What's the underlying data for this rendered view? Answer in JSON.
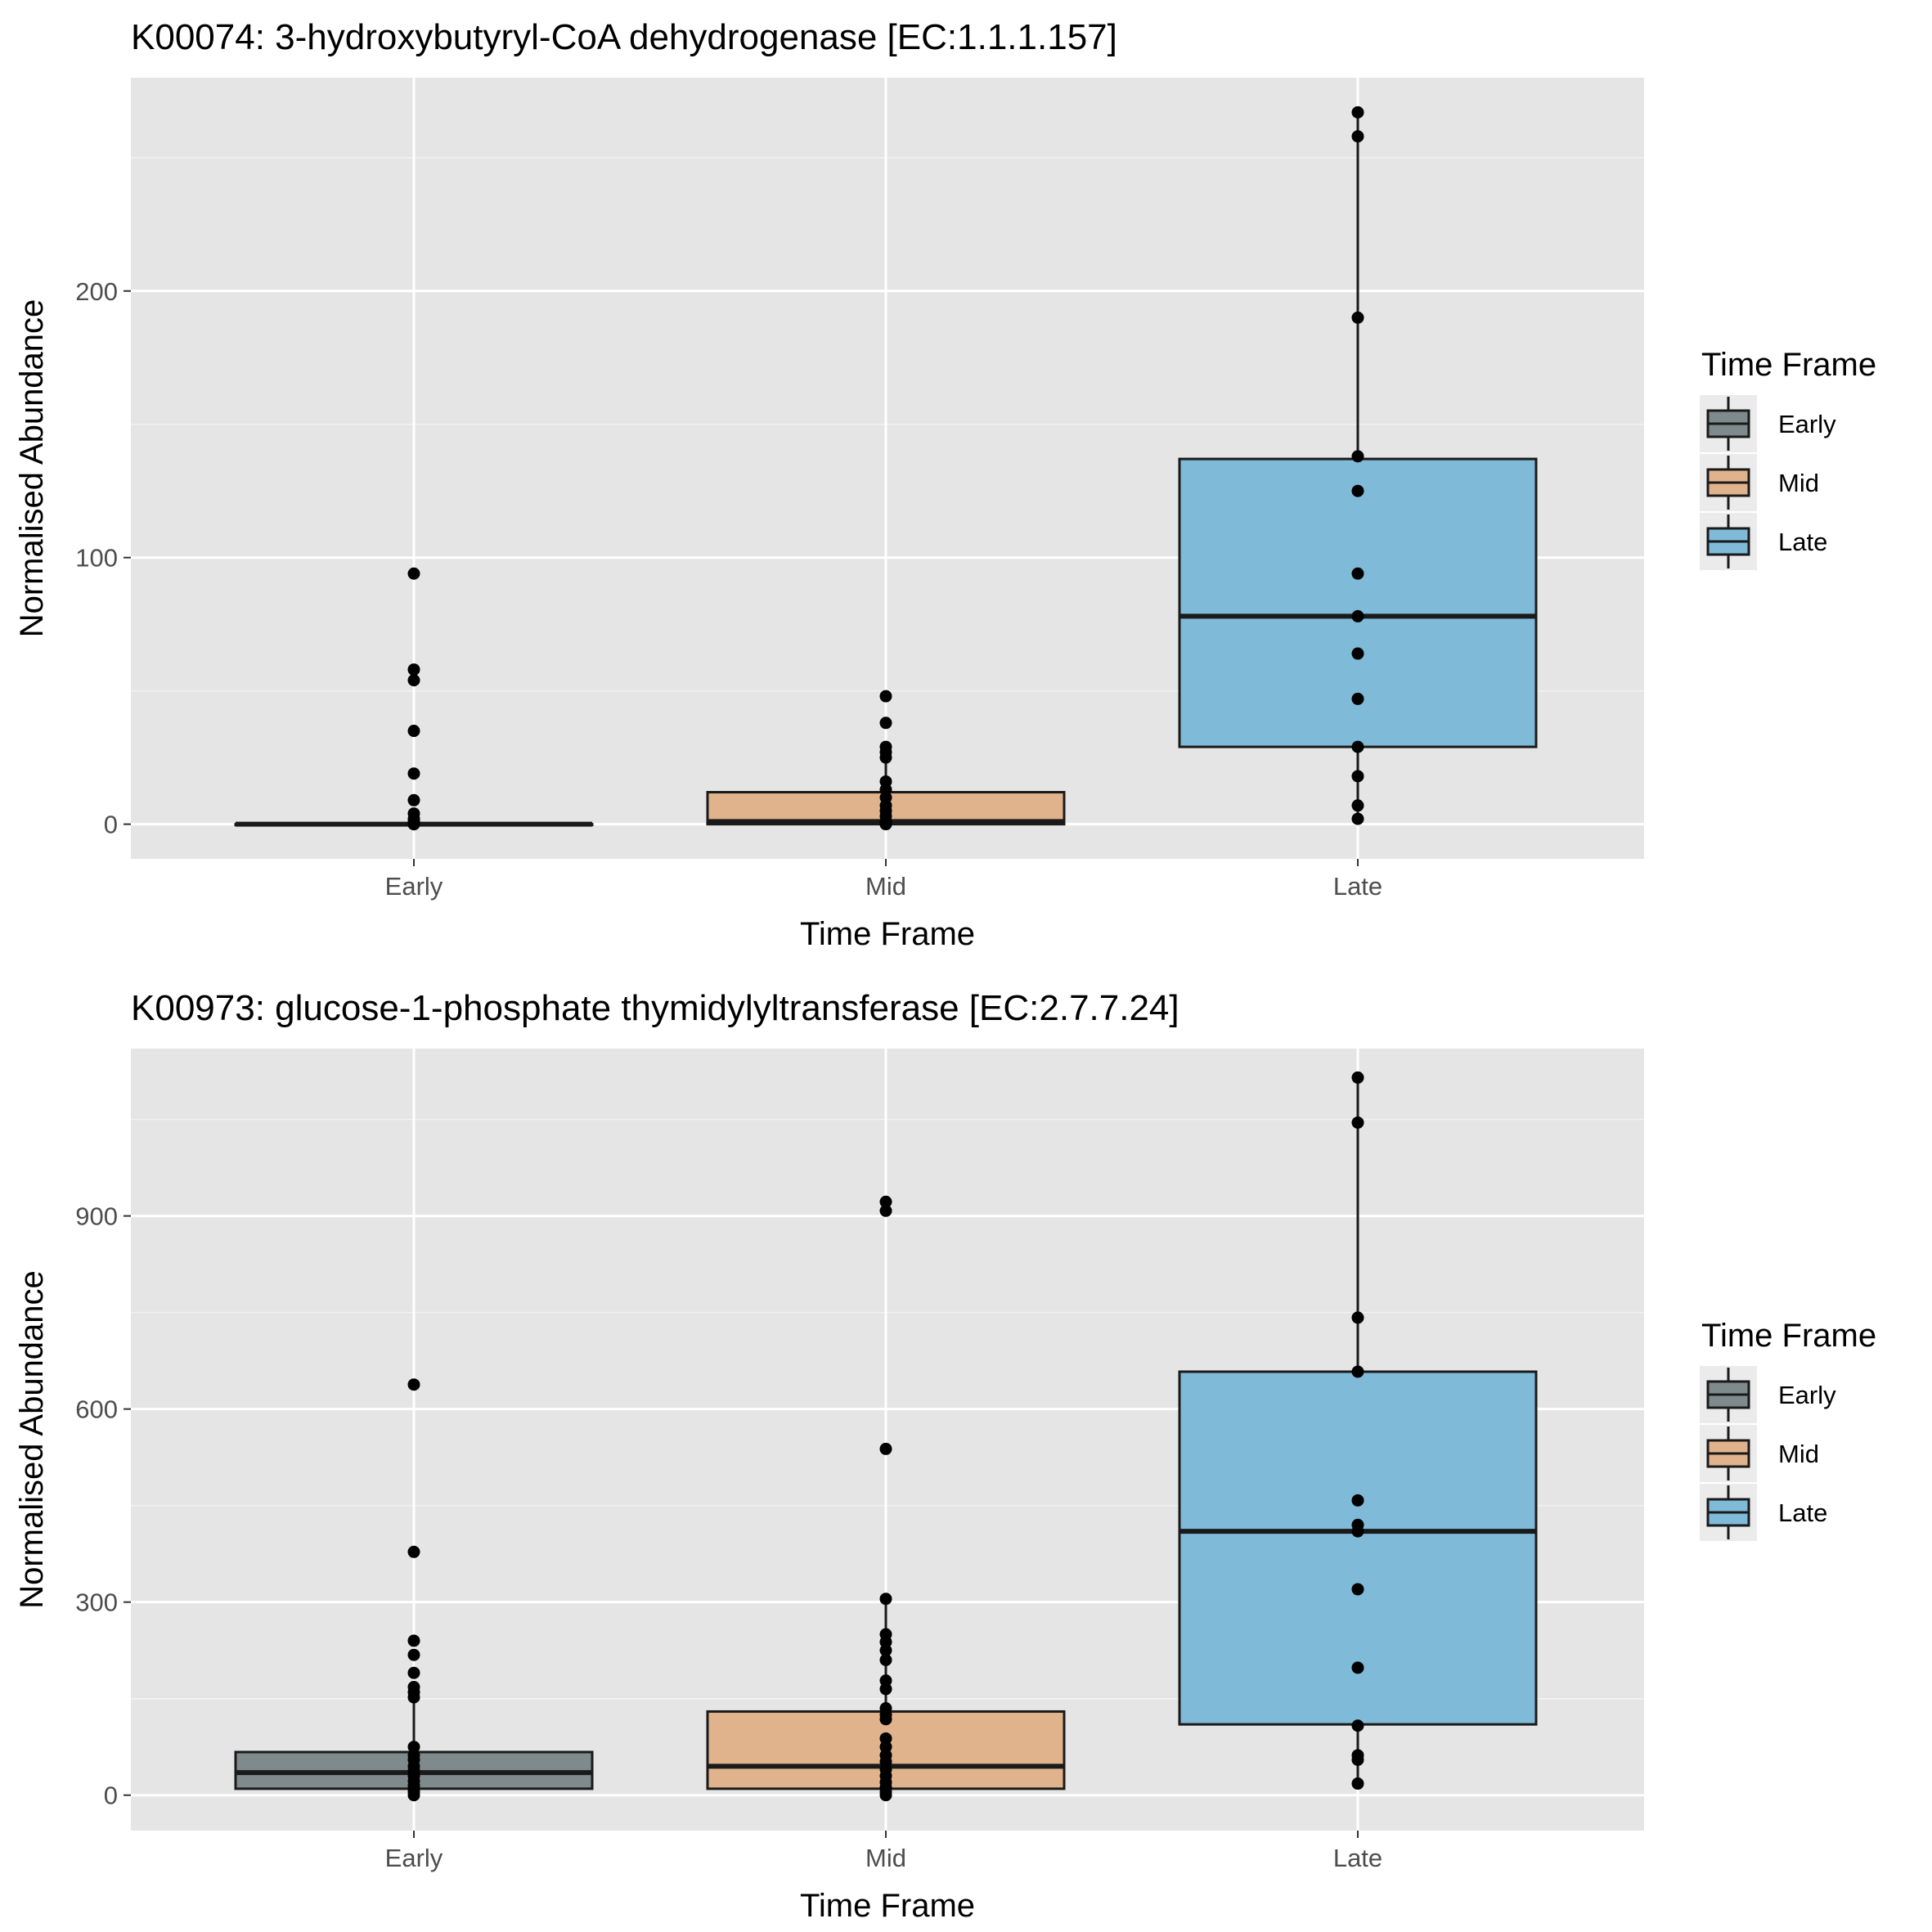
{
  "chart_data": [
    {
      "type": "box",
      "title": "K00074: 3-hydroxybutyryl-CoA dehydrogenase [EC:1.1.1.157]",
      "xlabel": "Time Frame",
      "ylabel": "Normalised Abundance",
      "ylim": [
        -13,
        280
      ],
      "yticks": [
        0,
        100,
        200
      ],
      "grid": true,
      "legend": {
        "title": "Time Frame",
        "position": "right",
        "entries": [
          "Early",
          "Mid",
          "Late"
        ]
      },
      "categories": [
        "Early",
        "Mid",
        "Late"
      ],
      "colors": [
        "#7f8a8c",
        "#e0b38c",
        "#7fbad8"
      ],
      "boxes": [
        {
          "category": "Early",
          "whisker_low": 0,
          "q1": 0,
          "median": 0,
          "q3": 0,
          "whisker_high": 0
        },
        {
          "category": "Mid",
          "whisker_low": 0,
          "q1": 0,
          "median": 1,
          "q3": 12,
          "whisker_high": 27
        },
        {
          "category": "Late",
          "whisker_low": 2,
          "q1": 29,
          "median": 78,
          "q3": 137,
          "whisker_high": 266
        }
      ],
      "points": [
        {
          "category": "Early",
          "values": [
            94,
            58,
            54,
            35,
            19,
            9,
            4,
            2,
            1,
            0,
            0,
            0
          ]
        },
        {
          "category": "Mid",
          "values": [
            48,
            38,
            29,
            27,
            25,
            16,
            13,
            10,
            7,
            5,
            3,
            1,
            0,
            0
          ]
        },
        {
          "category": "Late",
          "values": [
            267,
            258,
            190,
            138,
            125,
            94,
            78,
            64,
            47,
            29,
            18,
            7,
            2
          ]
        }
      ]
    },
    {
      "type": "box",
      "title": "K00973: glucose-1-phosphate thymidylyltransferase [EC:2.7.7.24]",
      "xlabel": "Time Frame",
      "ylabel": "Normalised Abundance",
      "ylim": [
        -55,
        1160
      ],
      "yticks": [
        0,
        300,
        600,
        900
      ],
      "grid": true,
      "legend": {
        "title": "Time Frame",
        "position": "right",
        "entries": [
          "Early",
          "Mid",
          "Late"
        ]
      },
      "categories": [
        "Early",
        "Mid",
        "Late"
      ],
      "colors": [
        "#7f8a8c",
        "#e0b38c",
        "#7fbad8"
      ],
      "boxes": [
        {
          "category": "Early",
          "whisker_low": 0,
          "q1": 10,
          "median": 35,
          "q3": 67,
          "whisker_high": 150
        },
        {
          "category": "Mid",
          "whisker_low": 0,
          "q1": 10,
          "median": 45,
          "q3": 130,
          "whisker_high": 305
        },
        {
          "category": "Late",
          "whisker_low": 18,
          "q1": 110,
          "median": 410,
          "q3": 658,
          "whisker_high": 1115
        }
      ],
      "points": [
        {
          "category": "Early",
          "values": [
            638,
            378,
            240,
            218,
            190,
            168,
            160,
            152,
            75,
            62,
            55,
            45,
            38,
            30,
            22,
            15,
            10,
            5,
            0
          ]
        },
        {
          "category": "Mid",
          "values": [
            922,
            908,
            538,
            305,
            250,
            238,
            225,
            210,
            178,
            165,
            135,
            125,
            118,
            88,
            75,
            62,
            52,
            40,
            30,
            20,
            12,
            5,
            0
          ]
        },
        {
          "category": "Late",
          "values": [
            1115,
            1045,
            742,
            658,
            458,
            420,
            410,
            320,
            198,
            108,
            62,
            55,
            18
          ]
        }
      ]
    }
  ]
}
